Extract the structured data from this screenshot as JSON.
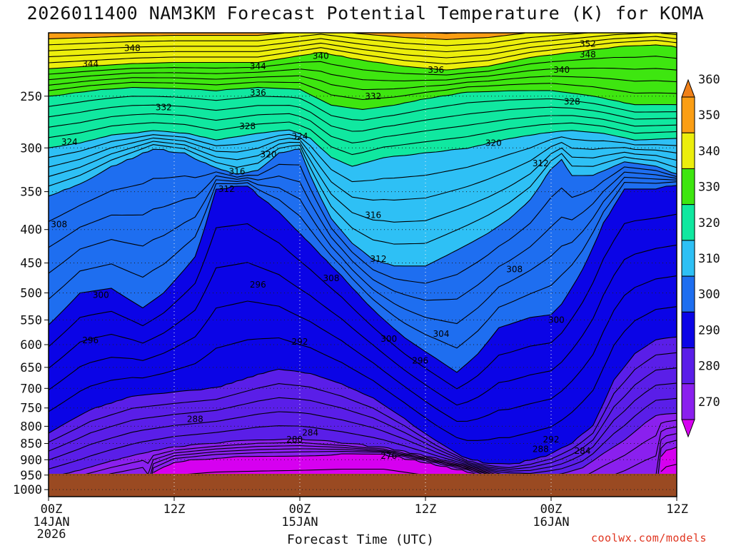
{
  "chart_data": {
    "type": "heatmap",
    "title": "2026011400 NAM3KM Forecast Potential Temperature (K) for KOMA",
    "xlabel": "Forecast Time (UTC)",
    "ylabel": "",
    "x_ticks": [
      {
        "hours": 0,
        "label": "00Z",
        "date": "14JAN",
        "year": "2026"
      },
      {
        "hours": 12,
        "label": "12Z",
        "date": "",
        "year": ""
      },
      {
        "hours": 24,
        "label": "00Z",
        "date": "15JAN",
        "year": ""
      },
      {
        "hours": 36,
        "label": "12Z",
        "date": "",
        "year": ""
      },
      {
        "hours": 48,
        "label": "00Z",
        "date": "16JAN",
        "year": ""
      },
      {
        "hours": 60,
        "label": "12Z",
        "date": "",
        "year": ""
      }
    ],
    "xlim": [
      0,
      60
    ],
    "y_ticks": [
      250,
      300,
      350,
      400,
      450,
      500,
      550,
      600,
      650,
      700,
      750,
      800,
      850,
      900,
      950,
      1000
    ],
    "ylim_hpa": [
      200,
      1025
    ],
    "colorbar": {
      "ticks": [
        270,
        280,
        290,
        300,
        310,
        320,
        330,
        340,
        350,
        360
      ],
      "colors": [
        "#d600f0",
        "#8a20ee",
        "#5a1ee8",
        "#0b04e6",
        "#1e6ef0",
        "#2ec0f5",
        "#10e8a0",
        "#3ee610",
        "#ecee0c",
        "#fb9e14",
        "#f08018"
      ],
      "units": "K"
    },
    "contour_interval_K": 2,
    "contour_labels": [
      {
        "value": 348,
        "t": 8.0,
        "p": 211
      },
      {
        "value": 344,
        "t": 4.0,
        "p": 223
      },
      {
        "value": 344,
        "t": 20.0,
        "p": 225
      },
      {
        "value": 340,
        "t": 26.0,
        "p": 217
      },
      {
        "value": 336,
        "t": 37.0,
        "p": 228
      },
      {
        "value": 340,
        "t": 49.0,
        "p": 228
      },
      {
        "value": 348,
        "t": 51.5,
        "p": 216
      },
      {
        "value": 352,
        "t": 51.5,
        "p": 208
      },
      {
        "value": 332,
        "t": 11.0,
        "p": 260
      },
      {
        "value": 336,
        "t": 20.0,
        "p": 247
      },
      {
        "value": 332,
        "t": 31.0,
        "p": 250
      },
      {
        "value": 328,
        "t": 50.0,
        "p": 255
      },
      {
        "value": 328,
        "t": 19.0,
        "p": 278
      },
      {
        "value": 324,
        "t": 24.0,
        "p": 288
      },
      {
        "value": 324,
        "t": 2.0,
        "p": 294
      },
      {
        "value": 320,
        "t": 21.0,
        "p": 307
      },
      {
        "value": 320,
        "t": 42.5,
        "p": 295
      },
      {
        "value": 316,
        "t": 18.0,
        "p": 326
      },
      {
        "value": 312,
        "t": 47.0,
        "p": 317
      },
      {
        "value": 312,
        "t": 17.0,
        "p": 347
      },
      {
        "value": 316,
        "t": 31.0,
        "p": 380
      },
      {
        "value": 308,
        "t": 1.0,
        "p": 393
      },
      {
        "value": 312,
        "t": 31.5,
        "p": 444
      },
      {
        "value": 308,
        "t": 27.0,
        "p": 475
      },
      {
        "value": 308,
        "t": 44.5,
        "p": 460
      },
      {
        "value": 296,
        "t": 20.0,
        "p": 486
      },
      {
        "value": 300,
        "t": 5.0,
        "p": 504
      },
      {
        "value": 300,
        "t": 48.5,
        "p": 550
      },
      {
        "value": 304,
        "t": 37.5,
        "p": 578
      },
      {
        "value": 300,
        "t": 32.5,
        "p": 588
      },
      {
        "value": 296,
        "t": 4.0,
        "p": 591
      },
      {
        "value": 292,
        "t": 24.0,
        "p": 594
      },
      {
        "value": 296,
        "t": 35.5,
        "p": 635
      },
      {
        "value": 288,
        "t": 14.0,
        "p": 780
      },
      {
        "value": 284,
        "t": 25.0,
        "p": 818
      },
      {
        "value": 280,
        "t": 23.5,
        "p": 838
      },
      {
        "value": 292,
        "t": 48.0,
        "p": 838
      },
      {
        "value": 288,
        "t": 47.0,
        "p": 867
      },
      {
        "value": 284,
        "t": 51.0,
        "p": 873
      },
      {
        "value": 276,
        "t": 32.5,
        "p": 888
      }
    ]
  },
  "footer": {
    "credit": "coolwx.com/models"
  }
}
